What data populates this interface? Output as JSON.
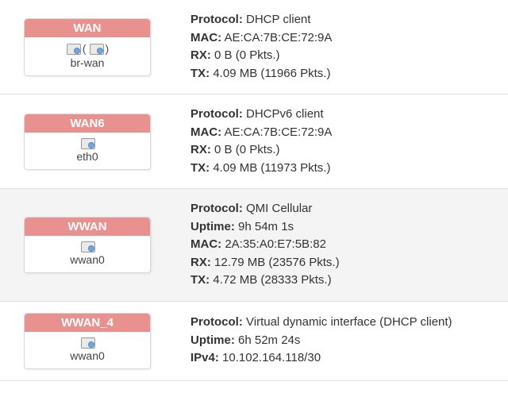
{
  "interfaces": [
    {
      "name": "WAN",
      "device": "br-wan",
      "multi_port": true,
      "stats": [
        {
          "label": "Protocol",
          "value": "DHCP client"
        },
        {
          "label": "MAC",
          "value": "AE:CA:7B:CE:72:9A"
        },
        {
          "label": "RX",
          "value": "0 B (0 Pkts.)"
        },
        {
          "label": "TX",
          "value": "4.09 MB (11966 Pkts.)"
        }
      ]
    },
    {
      "name": "WAN6",
      "device": "eth0",
      "multi_port": false,
      "stats": [
        {
          "label": "Protocol",
          "value": "DHCPv6 client"
        },
        {
          "label": "MAC",
          "value": "AE:CA:7B:CE:72:9A"
        },
        {
          "label": "RX",
          "value": "0 B (0 Pkts.)"
        },
        {
          "label": "TX",
          "value": "4.09 MB (11973 Pkts.)"
        }
      ]
    },
    {
      "name": "WWAN",
      "device": "wwan0",
      "multi_port": false,
      "alt": true,
      "stats": [
        {
          "label": "Protocol",
          "value": "QMI Cellular"
        },
        {
          "label": "Uptime",
          "value": "9h 54m 1s"
        },
        {
          "label": "MAC",
          "value": "2A:35:A0:E7:5B:82"
        },
        {
          "label": "RX",
          "value": "12.79 MB (23576 Pkts.)"
        },
        {
          "label": "TX",
          "value": "4.72 MB (28333 Pkts.)"
        }
      ]
    },
    {
      "name": "WWAN_4",
      "device": "wwan0",
      "multi_port": false,
      "stats": [
        {
          "label": "Protocol",
          "value": "Virtual dynamic interface (DHCP client)"
        },
        {
          "label": "Uptime",
          "value": "6h 52m 24s"
        },
        {
          "label": "IPv4",
          "value": "10.102.164.118/30"
        }
      ]
    }
  ],
  "colors": {
    "header_bg": "#e8918f",
    "header_text": "#ffffff",
    "row_alt_bg": "#f4f4f4",
    "border": "#d8d8d8",
    "text": "#333333"
  }
}
